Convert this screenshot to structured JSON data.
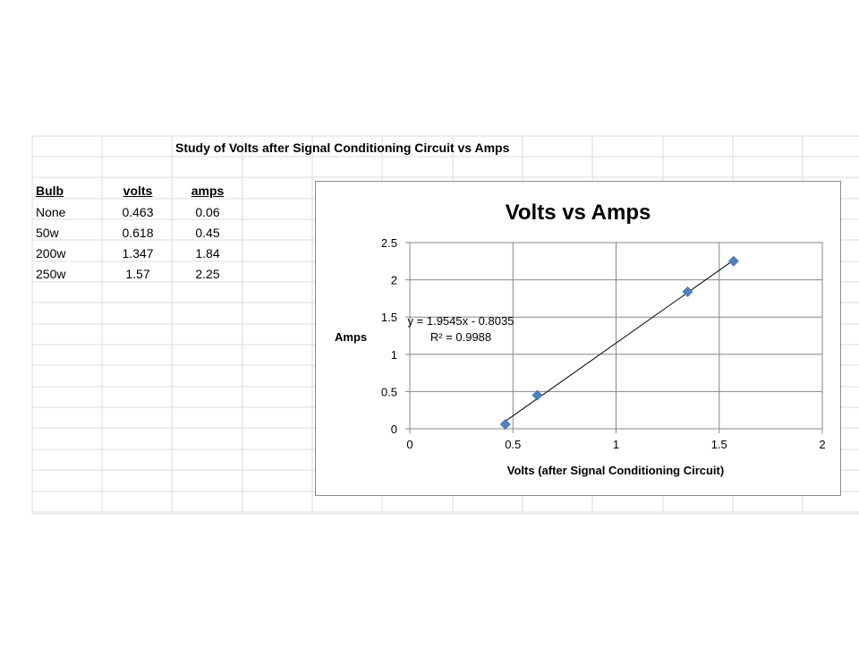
{
  "sheet": {
    "title": "Study of Volts after Signal Conditioning Circuit vs Amps",
    "headers": [
      "Bulb",
      "volts",
      "amps"
    ],
    "rows": [
      [
        "None",
        "0.463",
        "0.06"
      ],
      [
        "50w",
        "0.618",
        "0.45"
      ],
      [
        "200w",
        "1.347",
        "1.84"
      ],
      [
        "250w",
        "1.57",
        "2.25"
      ]
    ]
  },
  "chart_data": {
    "type": "scatter",
    "title": "Volts vs Amps",
    "xlabel": "Volts (after Signal Conditioning Circuit)",
    "ylabel": "Amps",
    "xlim": [
      0,
      2
    ],
    "ylim": [
      0,
      2.5
    ],
    "x_ticks": [
      "0",
      "0.5",
      "1",
      "1.5",
      "2"
    ],
    "y_ticks": [
      "0",
      "0.5",
      "1",
      "1.5",
      "2",
      "2.5"
    ],
    "grid": true,
    "marker_color": "#4F81BD",
    "trendline_color": "#000000",
    "series": [
      {
        "x": [
          0.463,
          0.618,
          1.347,
          1.57
        ],
        "y": [
          0.06,
          0.45,
          1.84,
          2.25
        ]
      }
    ],
    "trendline": {
      "slope": 1.9545,
      "intercept": -0.8035
    },
    "annotations": {
      "equation": "y = 1.9545x - 0.8035",
      "r_squared": "R² = 0.9988"
    }
  }
}
